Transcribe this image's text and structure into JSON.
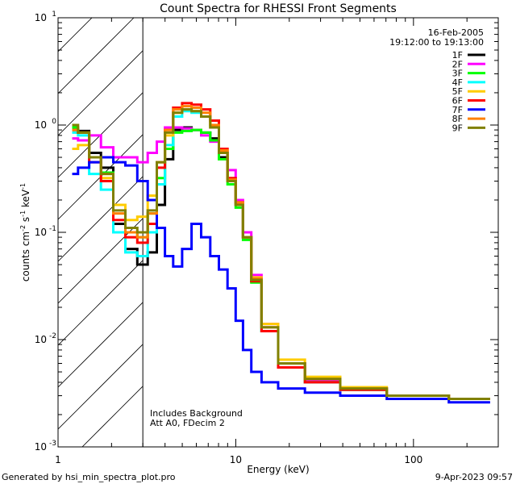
{
  "chart_data": {
    "type": "line",
    "title": "Count Spectra for RHESSI Front Segments",
    "xlabel": "Energy (keV)",
    "ylabel_parts": [
      "counts cm",
      "-2",
      " s",
      "-1",
      " keV",
      "-1"
    ],
    "x_scale": "log",
    "y_scale": "log",
    "xlim": [
      1.0,
      300.0
    ],
    "ylim": [
      0.001,
      10.0
    ],
    "x_ticks": [
      {
        "value": 1,
        "label": "1"
      },
      {
        "value": 10,
        "label": "10"
      },
      {
        "value": 100,
        "label": "100"
      }
    ],
    "y_ticks": [
      {
        "value": 0.001,
        "base": "10",
        "exp": "-3"
      },
      {
        "value": 0.01,
        "base": "10",
        "exp": "-2"
      },
      {
        "value": 0.1,
        "base": "10",
        "exp": "-1"
      },
      {
        "value": 1,
        "base": "10",
        "exp": "0"
      },
      {
        "value": 10,
        "base": "10",
        "exp": "1"
      }
    ],
    "hatched_region": [
      1.0,
      3.0
    ],
    "date": "16-Feb-2005",
    "time_range": "19:12:00 to 19:13:00",
    "annotations": [
      "Includes Background",
      "Att A0, FDecim 2"
    ],
    "legend_position": "top-right",
    "series": [
      {
        "name": "1F",
        "color": "#000000",
        "values": [
          0.9,
          0.88,
          0.55,
          0.4,
          0.12,
          0.07,
          0.05,
          0.065,
          0.18,
          0.48,
          0.9,
          0.95,
          0.9,
          0.85,
          0.75,
          0.5,
          0.3,
          0.18,
          0.09,
          0.035,
          0.012,
          0.006,
          0.004,
          0.0035,
          0.003,
          0.0028
        ]
      },
      {
        "name": "2F",
        "color": "#ff00ff",
        "values": [
          0.75,
          0.72,
          0.8,
          0.62,
          0.5,
          0.5,
          0.45,
          0.55,
          0.7,
          0.95,
          0.95,
          0.93,
          0.9,
          0.8,
          0.7,
          0.55,
          0.38,
          0.2,
          0.1,
          0.04,
          0.014,
          0.006,
          0.0042,
          0.0035,
          0.003,
          0.0028
        ]
      },
      {
        "name": "3F",
        "color": "#00ff00",
        "values": [
          0.95,
          0.85,
          0.5,
          0.36,
          0.18,
          0.1,
          0.09,
          0.15,
          0.32,
          0.6,
          0.85,
          0.88,
          0.9,
          0.85,
          0.72,
          0.48,
          0.28,
          0.17,
          0.085,
          0.034,
          0.012,
          0.0055,
          0.004,
          0.0034,
          0.003,
          0.0028
        ]
      },
      {
        "name": "4F",
        "color": "#00ffff",
        "values": [
          0.85,
          0.8,
          0.35,
          0.25,
          0.1,
          0.065,
          0.06,
          0.1,
          0.28,
          0.65,
          1.2,
          1.35,
          1.3,
          1.2,
          0.95,
          0.55,
          0.3,
          0.18,
          0.09,
          0.036,
          0.012,
          0.0055,
          0.004,
          0.0034,
          0.003,
          0.0028
        ]
      },
      {
        "name": "5F",
        "color": "#ffcc00",
        "values": [
          0.6,
          0.65,
          0.5,
          0.32,
          0.18,
          0.13,
          0.14,
          0.22,
          0.45,
          0.8,
          1.3,
          1.4,
          1.35,
          1.2,
          0.95,
          0.55,
          0.3,
          0.18,
          0.09,
          0.038,
          0.014,
          0.0065,
          0.0045,
          0.0036,
          0.003,
          0.0028
        ]
      },
      {
        "name": "6F",
        "color": "#ff0000",
        "values": [
          0.9,
          0.85,
          0.45,
          0.3,
          0.13,
          0.09,
          0.08,
          0.12,
          0.4,
          0.9,
          1.45,
          1.6,
          1.55,
          1.4,
          1.1,
          0.6,
          0.32,
          0.19,
          0.09,
          0.035,
          0.012,
          0.0055,
          0.004,
          0.0034,
          0.003,
          0.0028
        ]
      },
      {
        "name": "7F",
        "color": "#0000ff",
        "values": [
          0.35,
          0.4,
          0.45,
          0.5,
          0.45,
          0.42,
          0.3,
          0.2,
          0.11,
          0.06,
          0.048,
          0.07,
          0.12,
          0.09,
          0.06,
          0.045,
          0.03,
          0.015,
          0.008,
          0.005,
          0.004,
          0.0035,
          0.0032,
          0.003,
          0.0028,
          0.0026
        ]
      },
      {
        "name": "8F",
        "color": "#ff8000",
        "values": [
          0.9,
          0.85,
          0.5,
          0.35,
          0.15,
          0.1,
          0.09,
          0.15,
          0.45,
          0.9,
          1.4,
          1.5,
          1.45,
          1.3,
          1.0,
          0.58,
          0.31,
          0.19,
          0.09,
          0.037,
          0.013,
          0.006,
          0.0043,
          0.0035,
          0.003,
          0.0028
        ]
      },
      {
        "name": "9F",
        "color": "#808000",
        "values": [
          1.0,
          0.85,
          0.5,
          0.35,
          0.16,
          0.11,
          0.1,
          0.16,
          0.45,
          0.85,
          1.3,
          1.4,
          1.35,
          1.2,
          0.95,
          0.55,
          0.3,
          0.18,
          0.09,
          0.036,
          0.013,
          0.006,
          0.0043,
          0.0035,
          0.003,
          0.0028
        ]
      }
    ],
    "x": [
      1.2,
      1.4,
      1.6,
      1.9,
      2.2,
      2.6,
      3.0,
      3.4,
      3.8,
      4.2,
      4.7,
      5.3,
      6.0,
      6.8,
      7.6,
      8.5,
      9.5,
      10.5,
      11.5,
      13.0,
      15.0,
      20.0,
      30.0,
      50.0,
      100.0,
      250.0
    ]
  },
  "footer": {
    "left": "Generated by hsi_min_spectra_plot.pro",
    "right": "9-Apr-2023 09:57"
  }
}
